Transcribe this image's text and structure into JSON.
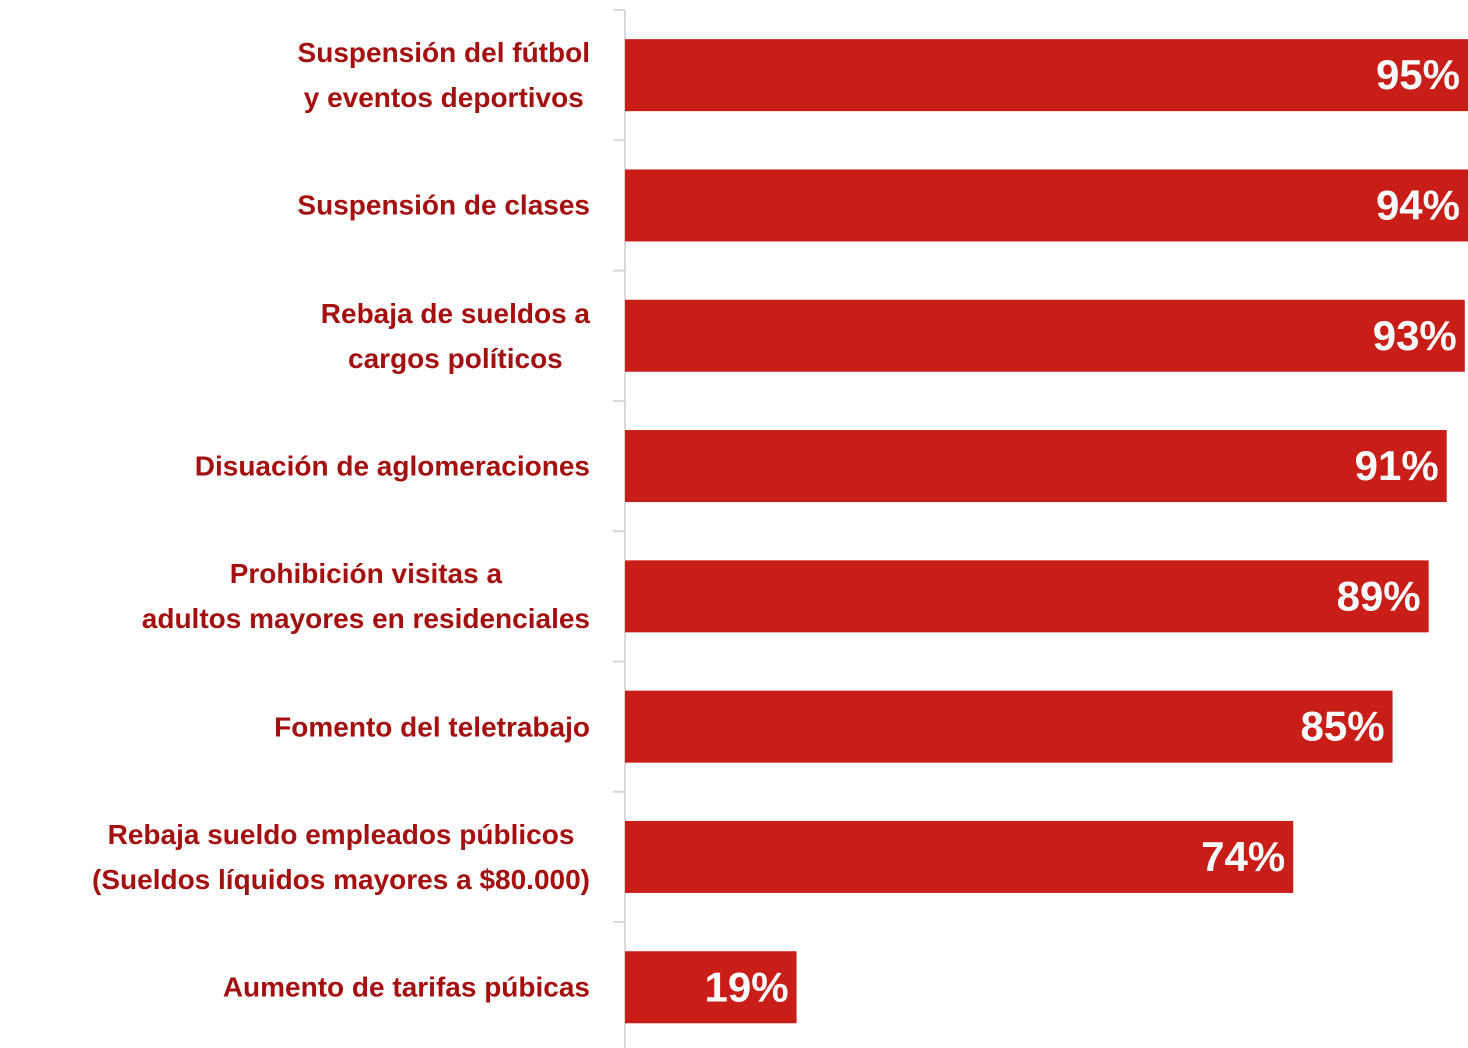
{
  "chart_data": {
    "type": "bar",
    "orientation": "horizontal",
    "categories": [
      "Suspensión del fútbol\ny eventos deportivos",
      "Suspensión de clases",
      "Rebaja de sueldos a\ncargos políticos",
      "Disuación de aglomeraciones",
      "Prohibición visitas a\nadultos mayores en residenciales",
      "Fomento del teletrabajo",
      "Rebaja sueldo empleados públicos\n(Sueldos líquidos mayores a $80.000)",
      "Aumento de tarifas púbicas"
    ],
    "values": [
      95,
      94,
      93,
      91,
      89,
      85,
      74,
      19
    ],
    "value_labels": [
      "95%",
      "94%",
      "93%",
      "91%",
      "89%",
      "85%",
      "74%",
      "19%"
    ],
    "color": "#c91d17",
    "label_color": "#a3100f"
  }
}
